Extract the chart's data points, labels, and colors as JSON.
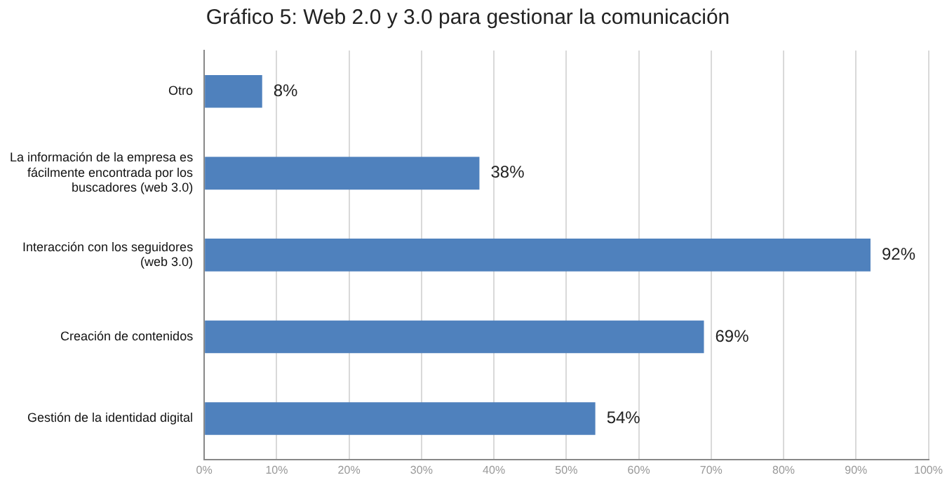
{
  "chart_data": {
    "type": "bar",
    "orientation": "horizontal",
    "title": "Gráfico 5: Web 2.0 y 3.0 para gestionar la comunicación",
    "categories": [
      "Otro",
      "La información de la empresa es fácilmente encontrada por los buscadores (web 3.0)",
      "Interacción con los seguidores (web 3.0)",
      "Creación de contenidos",
      "Gestión de la identidad digital"
    ],
    "values": [
      8,
      38,
      92,
      69,
      54
    ],
    "value_labels": [
      "8%",
      "38%",
      "92%",
      "69%",
      "54%"
    ],
    "color": "#4f81bd",
    "xlim": [
      0,
      100
    ],
    "xticks": [
      {
        "value": 0,
        "label": "0%"
      },
      {
        "value": 10,
        "label": "10%"
      },
      {
        "value": 20,
        "label": "20%"
      },
      {
        "value": 30,
        "label": "30%"
      },
      {
        "value": 40,
        "label": "40%"
      },
      {
        "value": 50,
        "label": "50%"
      },
      {
        "value": 60,
        "label": "60%"
      },
      {
        "value": 70,
        "label": "70%"
      },
      {
        "value": 80,
        "label": "80%"
      },
      {
        "value": 90,
        "label": "90%"
      },
      {
        "value": 100,
        "label": "100%"
      }
    ],
    "grid": "x",
    "legend": false
  }
}
